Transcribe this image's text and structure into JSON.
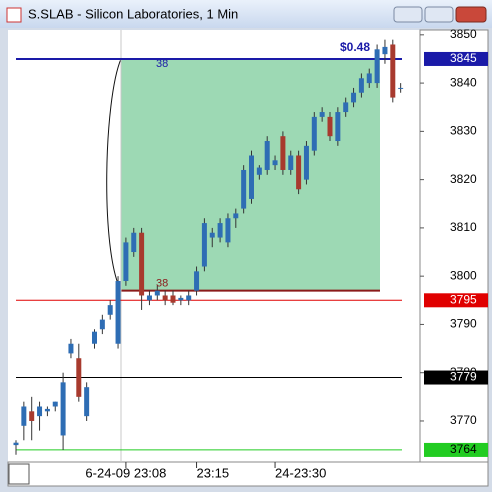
{
  "window": {
    "title": "S.SLAB - Silicon Laboratories, 1 Min"
  },
  "chart_data": {
    "type": "candlestick",
    "ylim": [
      3761.5,
      3851
    ],
    "yticks": [
      3770,
      3780,
      3790,
      3800,
      3810,
      3820,
      3830,
      3840,
      3850
    ],
    "up_color": "#2e6db4",
    "down_color": "#a83a2e",
    "categories": [
      null,
      null,
      null,
      null,
      null,
      null,
      null,
      null,
      null,
      null,
      null,
      null,
      null,
      null,
      "6-24-09 23:08",
      null,
      null,
      null,
      null,
      null,
      null,
      null,
      null,
      "23:15",
      null,
      null,
      null,
      null,
      null,
      null,
      null,
      null,
      null,
      "24-23:30",
      null,
      null,
      null,
      null,
      null,
      null,
      null,
      null,
      null,
      null,
      null,
      null,
      null,
      null,
      null,
      null
    ],
    "candles": [
      [
        3765,
        3766,
        3763,
        3765.5
      ],
      [
        3769,
        3774,
        3766,
        3773
      ],
      [
        3772,
        3775,
        3766,
        3770
      ],
      [
        3771,
        3774,
        3768,
        3773
      ],
      [
        3772,
        3773,
        3771,
        3772.5
      ],
      [
        3773,
        3774,
        3772,
        3774
      ],
      [
        3767,
        3780,
        3764,
        3778
      ],
      [
        3784,
        3787,
        3783,
        3786
      ],
      [
        3783,
        3786,
        3774,
        3775
      ],
      [
        3771,
        3778,
        3770,
        3777
      ],
      [
        3786,
        3789,
        3785,
        3788.5
      ],
      [
        3789,
        3792,
        3788,
        3791
      ],
      [
        3792,
        3795,
        3791,
        3794
      ],
      [
        3786,
        3800,
        3785,
        3799
      ],
      [
        3799,
        3808,
        3798,
        3807
      ],
      [
        3805,
        3810,
        3804,
        3809
      ],
      [
        3809,
        3810,
        3793,
        3796
      ],
      [
        3795,
        3797,
        3794,
        3796
      ],
      [
        3796,
        3798,
        3795,
        3797
      ],
      [
        3796,
        3797,
        3794,
        3795
      ],
      [
        3796,
        3797,
        3794,
        3794.5
      ],
      [
        3795,
        3796,
        3794,
        3795.5
      ],
      [
        3795,
        3797,
        3794,
        3796
      ],
      [
        3797,
        3802,
        3796,
        3801
      ],
      [
        3802,
        3812,
        3801,
        3811
      ],
      [
        3808,
        3810,
        3806,
        3809
      ],
      [
        3808,
        3812,
        3807,
        3811
      ],
      [
        3807,
        3813,
        3806,
        3812
      ],
      [
        3812,
        3814,
        3810,
        3813
      ],
      [
        3814,
        3823,
        3813,
        3822
      ],
      [
        3816,
        3826,
        3815,
        3825
      ],
      [
        3821,
        3823,
        3820,
        3822.5
      ],
      [
        3822,
        3829,
        3821,
        3828
      ],
      [
        3823,
        3825,
        3822,
        3824
      ],
      [
        3829,
        3830,
        3821,
        3822
      ],
      [
        3822,
        3826,
        3821,
        3825
      ],
      [
        3825,
        3826,
        3817,
        3818
      ],
      [
        3820,
        3828,
        3819,
        3827
      ],
      [
        3826,
        3834,
        3825,
        3833
      ],
      [
        3833,
        3835,
        3832,
        3834
      ],
      [
        3833,
        3834,
        3828,
        3829
      ],
      [
        3828,
        3835,
        3827,
        3834
      ],
      [
        3834,
        3837,
        3833,
        3836
      ],
      [
        3836,
        3839,
        3835,
        3838
      ],
      [
        3838,
        3842,
        3837,
        3841
      ],
      [
        3840,
        3843,
        3839,
        3842
      ],
      [
        3840,
        3848,
        3839,
        3847
      ],
      [
        3846,
        3849,
        3844,
        3847.5
      ],
      [
        3848,
        3849,
        3836,
        3837
      ],
      [
        3839,
        3840,
        3838,
        3839
      ]
    ],
    "levels": [
      {
        "value": 3845,
        "color": "#1a1aa8"
      },
      {
        "value": 3795,
        "color": "#e00000"
      },
      {
        "value": 3779,
        "color": "#000000"
      },
      {
        "value": 3764,
        "color": "#22cc22"
      }
    ],
    "range_box": {
      "top": 3845,
      "bottom": 3797,
      "top_label": "38",
      "bottom_label": "38",
      "change": "$0.48",
      "color": "#9dd9b4"
    }
  }
}
